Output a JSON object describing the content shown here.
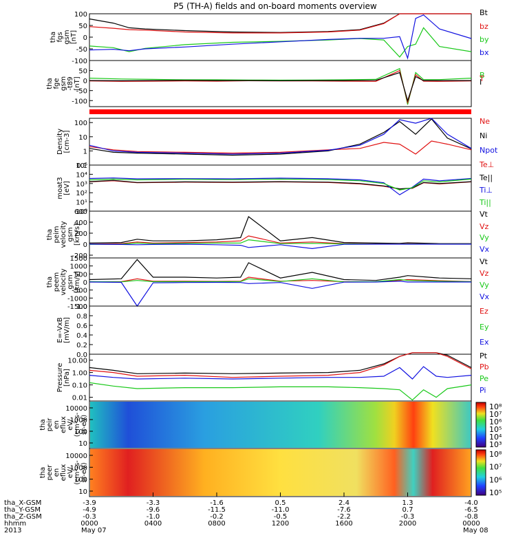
{
  "title": "P5 (TH-A) fields and on-board moments overview",
  "colors": {
    "black": "#000000",
    "red": "#e01010",
    "green": "#18c818",
    "blue": "#1010e0"
  },
  "chart_data": [
    {
      "type": "line",
      "id": "fgs",
      "ylabel": [
        "tha",
        "fgs",
        "gsm",
        "[nT]"
      ],
      "ylim": [
        -100,
        100
      ],
      "yticks": [
        "100",
        "50",
        "0",
        "-50",
        "-100"
      ],
      "yticks_values": [
        100,
        50,
        0,
        -50,
        -100
      ],
      "x_hours": [
        0,
        1.5,
        2.5,
        3.5,
        6,
        9,
        12,
        15,
        17,
        18.5,
        19.5,
        20,
        20.5,
        21,
        22,
        24
      ],
      "series": [
        {
          "name": "Bt",
          "color": "black",
          "values": [
            78,
            60,
            40,
            35,
            28,
            22,
            20,
            24,
            32,
            60,
            100,
            100,
            100,
            100,
            100,
            100
          ]
        },
        {
          "name": "bz",
          "color": "red",
          "values": [
            45,
            38,
            32,
            30,
            22,
            18,
            18,
            22,
            30,
            58,
            100,
            100,
            100,
            100,
            100,
            100
          ]
        },
        {
          "name": "by",
          "color": "green",
          "values": [
            -38,
            -45,
            -62,
            -48,
            -32,
            -22,
            -18,
            -12,
            -6,
            -12,
            -85,
            -40,
            -30,
            40,
            -40,
            -62
          ]
        },
        {
          "name": "bx",
          "color": "blue",
          "values": [
            -55,
            -52,
            -58,
            -50,
            -42,
            -30,
            -20,
            -10,
            -5,
            -5,
            2,
            -90,
            80,
            95,
            35,
            -6
          ]
        }
      ],
      "labels_right": [
        "Bt",
        "bz",
        "by",
        "bx"
      ]
    },
    {
      "type": "line",
      "id": "fge",
      "ylabel": [
        "tha",
        "fge",
        "gsm",
        "-t89",
        "[nT]"
      ],
      "ylim": [
        -130,
        100
      ],
      "yticks": [
        "50",
        "0",
        "-50",
        "-100"
      ],
      "yticks_values": [
        50,
        0,
        -50,
        -100
      ],
      "x_hours": [
        0,
        2,
        4,
        6,
        8,
        10,
        12,
        14,
        16,
        18,
        19.5,
        20,
        20.5,
        21,
        22,
        24
      ],
      "series": [
        {
          "name": "B",
          "color": "green",
          "values": [
            12,
            8,
            6,
            4,
            4,
            3,
            2,
            3,
            4,
            6,
            60,
            -120,
            40,
            5,
            5,
            12
          ]
        },
        {
          "name": "T",
          "color": "red",
          "values": [
            -2,
            -4,
            -3,
            -2,
            -3,
            -1,
            -2,
            -2,
            -3,
            -4,
            50,
            -110,
            30,
            -3,
            -4,
            -2
          ]
        },
        {
          "name": "I",
          "color": "black",
          "values": [
            0,
            -1,
            0,
            1,
            0,
            0,
            -1,
            0,
            0,
            1,
            40,
            -100,
            20,
            0,
            0,
            0
          ]
        }
      ],
      "labels_right": [
        "B",
        "T",
        "I"
      ]
    },
    {
      "type": "line",
      "id": "density",
      "log": true,
      "ylabel": [
        "Density",
        "[cm-3]"
      ],
      "ylim": [
        0.1,
        200
      ],
      "yticks": [
        "100",
        "10",
        "1",
        "0.1"
      ],
      "yticks_values": [
        100,
        10,
        1,
        0.1
      ],
      "x_hours": [
        0,
        1.5,
        3,
        6,
        9,
        12,
        15,
        17,
        18.5,
        19.5,
        20.5,
        21.5,
        22.5,
        24
      ],
      "series": [
        {
          "name": "Ne",
          "color": "red",
          "values": [
            2.0,
            1.2,
            0.9,
            0.8,
            0.7,
            0.8,
            1.2,
            1.5,
            4,
            3,
            0.6,
            5,
            3,
            1.2
          ]
        },
        {
          "name": "Ni",
          "color": "black",
          "values": [
            1.5,
            0.8,
            0.7,
            0.6,
            0.5,
            0.6,
            1.0,
            3.0,
            20,
            120,
            15,
            180,
            8,
            1.4
          ]
        },
        {
          "name": "Npot",
          "color": "blue",
          "values": [
            2.5,
            1.0,
            0.8,
            0.7,
            0.6,
            0.7,
            1.1,
            2.5,
            15,
            160,
            90,
            200,
            15,
            1.5
          ]
        }
      ],
      "labels_right": [
        "Ne",
        "Ni",
        "Npot"
      ]
    },
    {
      "type": "line",
      "id": "temp",
      "log": true,
      "ylabel": [
        "moat3",
        "[eV]"
      ],
      "ylim": [
        1,
        100000
      ],
      "yticks": [
        "10⁵",
        "10⁴",
        "10³",
        "10²",
        "10¹",
        "10⁰"
      ],
      "yticks_values": [
        100000,
        10000,
        1000,
        100,
        10,
        1
      ],
      "x_hours": [
        0,
        1.5,
        3,
        6,
        9,
        12,
        15,
        17,
        18.5,
        19.5,
        20.3,
        21,
        22,
        24
      ],
      "series": [
        {
          "name": "Te⊥",
          "color": "red",
          "values": [
            1500,
            2000,
            1200,
            1400,
            1300,
            1500,
            1300,
            900,
            500,
            250,
            300,
            1200,
            900,
            1500
          ]
        },
        {
          "name": "Te||",
          "color": "black",
          "values": [
            1600,
            2200,
            1300,
            1500,
            1400,
            1600,
            1400,
            1000,
            550,
            260,
            320,
            1300,
            1000,
            1600
          ]
        },
        {
          "name": "Ti⊥",
          "color": "blue",
          "values": [
            3500,
            4000,
            3200,
            3400,
            3200,
            3800,
            3300,
            2500,
            1200,
            60,
            400,
            3000,
            2000,
            3500
          ]
        },
        {
          "name": "Ti||",
          "color": "green",
          "values": [
            2500,
            3000,
            2500,
            2800,
            2600,
            3000,
            2600,
            2000,
            1000,
            200,
            350,
            2000,
            1500,
            3000
          ]
        }
      ],
      "labels_right": [
        "Te⊥",
        "Te||",
        "Ti⊥",
        "Ti||"
      ]
    },
    {
      "type": "line",
      "id": "peim",
      "ylabel": [
        "tha",
        "peim",
        "velocity",
        "gsm",
        "[km/s]"
      ],
      "ylim": [
        -250,
        600
      ],
      "yticks": [
        "600",
        "400",
        "200",
        "0",
        "-200"
      ],
      "yticks_values": [
        600,
        400,
        200,
        0,
        -200
      ],
      "x_hours": [
        0,
        2,
        3,
        4,
        6,
        8,
        9.5,
        10,
        12,
        14,
        16,
        18,
        19.5,
        20,
        22,
        24
      ],
      "series": [
        {
          "name": "Vt",
          "color": "black",
          "values": [
            20,
            30,
            90,
            60,
            60,
            80,
            120,
            500,
            60,
            120,
            30,
            20,
            15,
            25,
            10,
            10
          ]
        },
        {
          "name": "Vz",
          "color": "red",
          "values": [
            0,
            10,
            40,
            20,
            30,
            40,
            60,
            150,
            20,
            40,
            10,
            5,
            5,
            8,
            3,
            2
          ]
        },
        {
          "name": "Vy",
          "color": "green",
          "values": [
            -5,
            0,
            20,
            10,
            15,
            20,
            20,
            80,
            10,
            15,
            5,
            2,
            2,
            4,
            1,
            1
          ]
        },
        {
          "name": "Vx",
          "color": "blue",
          "values": [
            0,
            -5,
            -10,
            -5,
            0,
            -10,
            -20,
            -60,
            -10,
            -80,
            -2,
            0,
            0,
            0,
            0,
            0
          ]
        }
      ],
      "labels_right": [
        "Vt",
        "Vz",
        "Vy",
        "Vx"
      ]
    },
    {
      "type": "line",
      "id": "peem",
      "ylabel": [
        "tha",
        "peem",
        "velocity",
        "gsm",
        "[km/s]"
      ],
      "ylim": [
        -1500,
        1500
      ],
      "yticks": [
        "1500",
        "1000",
        "500",
        "0",
        "-500",
        "-1000",
        "-1500"
      ],
      "yticks_values": [
        1500,
        1000,
        500,
        0,
        -500,
        -1000,
        -1500
      ],
      "x_hours": [
        0,
        2,
        3,
        4,
        6,
        8,
        9.5,
        10,
        12,
        14,
        16,
        18,
        19.5,
        20,
        22,
        24
      ],
      "series": [
        {
          "name": "Vt",
          "color": "black",
          "values": [
            150,
            200,
            1400,
            300,
            300,
            250,
            300,
            1200,
            250,
            600,
            150,
            100,
            300,
            400,
            250,
            200
          ]
        },
        {
          "name": "Vz",
          "color": "red",
          "values": [
            0,
            20,
            200,
            50,
            50,
            40,
            50,
            300,
            50,
            100,
            20,
            10,
            100,
            150,
            80,
            30
          ]
        },
        {
          "name": "Vy",
          "color": "green",
          "values": [
            20,
            10,
            100,
            20,
            20,
            20,
            30,
            200,
            30,
            200,
            10,
            20,
            150,
            100,
            50,
            20
          ]
        },
        {
          "name": "Vx",
          "color": "blue",
          "values": [
            0,
            -20,
            -1500,
            -50,
            -30,
            -20,
            -30,
            -100,
            -30,
            -400,
            -10,
            0,
            50,
            0,
            0,
            0
          ]
        }
      ],
      "labels_right": [
        "Vt",
        "Vz",
        "Vy",
        "Vx"
      ]
    },
    {
      "type": "line",
      "id": "efield",
      "ylabel": [
        "E=-VxB",
        "[mV/m]"
      ],
      "ylim": [
        0,
        1
      ],
      "yticks": [
        "1.0",
        "0.8",
        "0.6",
        "0.4",
        "0.2",
        "0.0"
      ],
      "yticks_values": [
        1,
        0.8,
        0.6,
        0.4,
        0.2,
        0
      ],
      "series": [],
      "labels_right": [
        "Ez",
        "Ey",
        "Ex"
      ]
    },
    {
      "type": "line",
      "id": "pressure",
      "log": true,
      "ylabel": [
        "Pressure",
        "[nPa]"
      ],
      "ylim": [
        0.005,
        30
      ],
      "yticks": [
        "10.00",
        "1.00",
        "0.10",
        "0.01"
      ],
      "yticks_values": [
        10,
        1,
        0.1,
        0.01
      ],
      "x_hours": [
        0,
        1.5,
        3,
        6,
        9,
        12,
        15,
        17,
        18.5,
        19.5,
        20.3,
        21,
        21.8,
        22.5,
        24
      ],
      "series": [
        {
          "name": "Pt",
          "color": "black",
          "values": [
            2.5,
            1.5,
            0.8,
            0.9,
            0.8,
            0.9,
            1.0,
            1.5,
            5,
            20,
            40,
            40,
            40,
            25,
            2.5
          ]
        },
        {
          "name": "Pb",
          "color": "red",
          "values": [
            1.5,
            1.0,
            0.5,
            0.6,
            0.4,
            0.5,
            0.6,
            1.0,
            4,
            20,
            40,
            40,
            40,
            20,
            2.0
          ]
        },
        {
          "name": "Pe",
          "color": "green",
          "values": [
            0.15,
            0.08,
            0.05,
            0.06,
            0.06,
            0.07,
            0.07,
            0.06,
            0.05,
            0.04,
            0.006,
            0.04,
            0.01,
            0.05,
            0.1
          ]
        },
        {
          "name": "Pi",
          "color": "blue",
          "values": [
            0.6,
            0.4,
            0.3,
            0.35,
            0.3,
            0.35,
            0.4,
            0.4,
            0.5,
            2.5,
            0.3,
            3,
            0.5,
            0.4,
            0.6
          ]
        }
      ],
      "labels_right": [
        "Pt",
        "Pb",
        "Pe",
        "Pi"
      ]
    },
    {
      "type": "heatmap",
      "id": "peir",
      "ylabel": [
        "tha",
        "peir",
        "en",
        "eflux",
        "eV/",
        "(cm²-s-",
        "sr-eV)"
      ],
      "yticks": [
        "10000",
        "1000",
        "100",
        "10"
      ],
      "colorbar_ticks": [
        "10⁸",
        "10⁷",
        "10⁶",
        "10⁵",
        "10⁴",
        "10³"
      ]
    },
    {
      "type": "heatmap",
      "id": "peer",
      "ylabel": [
        "tha",
        "peer",
        "en",
        "eflux",
        "eV/",
        "(cm²-s-",
        "sr-eV)"
      ],
      "yticks": [
        "10000",
        "1000",
        "100",
        "10"
      ],
      "colorbar_ticks": [
        "10⁸",
        "10⁷",
        "10⁶",
        "10⁵"
      ]
    }
  ],
  "xaxis": {
    "row_labels": [
      "tha_X-GSM",
      "tha_Y-GSM",
      "tha_Z-GSM",
      "hhmm",
      "2013"
    ],
    "columns": [
      {
        "x": "-3.9",
        "y": "-4.9",
        "z": "-0.3",
        "hhmm": "0000",
        "date": "May 07"
      },
      {
        "x": "-3.3",
        "y": "-9.6",
        "z": "-1.0",
        "hhmm": "0400",
        "date": ""
      },
      {
        "x": "-1.6",
        "y": "-11.5",
        "z": "-0.2",
        "hhmm": "0800",
        "date": ""
      },
      {
        "x": "0.5",
        "y": "-11.0",
        "z": "-0.5",
        "hhmm": "1200",
        "date": ""
      },
      {
        "x": "2.4",
        "y": "-7.6",
        "z": "-2.2",
        "hhmm": "1600",
        "date": ""
      },
      {
        "x": "1.3",
        "y": "0.7",
        "z": "-0.3",
        "hhmm": "2000",
        "date": ""
      },
      {
        "x": "-4.0",
        "y": "-6.5",
        "z": "-0.8",
        "hhmm": "0000",
        "date": "May 08"
      }
    ]
  }
}
